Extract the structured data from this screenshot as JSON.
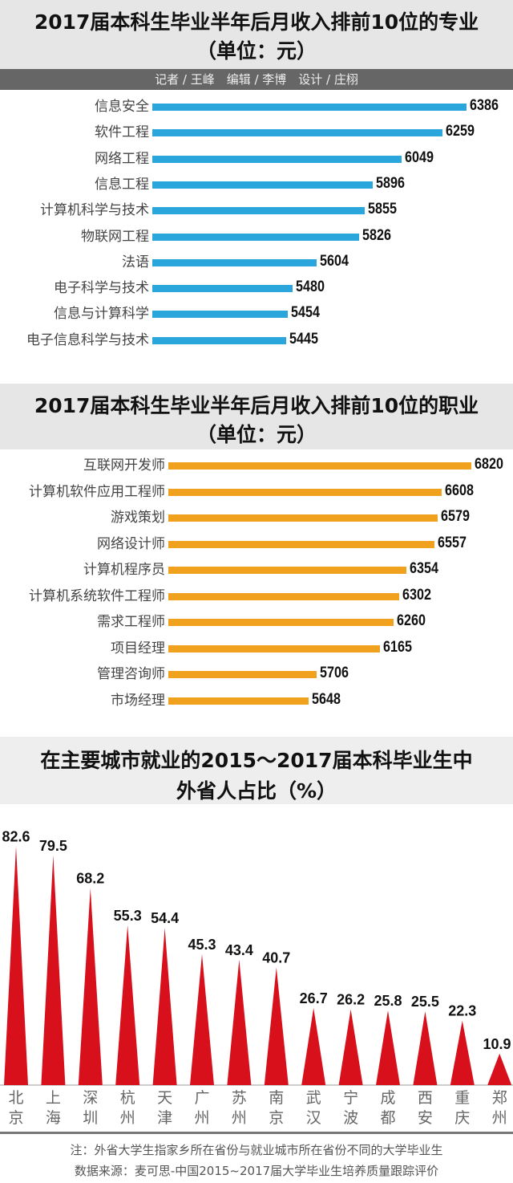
{
  "credit": "记者 / 王峰　编辑 / 李博　设计 / 庄栩",
  "chart_data": [
    {
      "type": "bar",
      "orientation": "horizontal",
      "title": "2017届本科生毕业半年后月收入排前10位的专业",
      "subtitle": "（单位：元）",
      "color": "#2aa6dc",
      "categories": [
        "信息安全",
        "软件工程",
        "网络工程",
        "信息工程",
        "计算机科学与技术",
        "物联网工程",
        "法语",
        "电子科学与技术",
        "信息与计算科学",
        "电子信息科学与技术"
      ],
      "values": [
        6386,
        6259,
        6049,
        5896,
        5855,
        5826,
        5604,
        5480,
        5454,
        5445
      ]
    },
    {
      "type": "bar",
      "orientation": "horizontal",
      "title": "2017届本科生毕业半年后月收入排前10位的职业",
      "subtitle": "（单位：元）",
      "color": "#f0a21e",
      "categories": [
        "互联网开发师",
        "计算机软件应用工程师",
        "游戏策划",
        "网络设计师",
        "计算机程序员",
        "计算机系统软件工程师",
        "需求工程师",
        "项目经理",
        "管理咨询师",
        "市场经理"
      ],
      "values": [
        6820,
        6608,
        6579,
        6557,
        6354,
        6302,
        6260,
        6165,
        5706,
        5648
      ]
    },
    {
      "type": "bar",
      "shape": "triangle",
      "title": "在主要城市就业的2015～2017届本科毕业生中",
      "subtitle": "外省人占比（%）",
      "color": "#d8101c",
      "categories": [
        "北京",
        "上海",
        "深圳",
        "杭州",
        "天津",
        "广州",
        "苏州",
        "南京",
        "武汉",
        "宁波",
        "成都",
        "西安",
        "重庆",
        "郑州"
      ],
      "values": [
        82.6,
        79.5,
        68.2,
        55.3,
        54.4,
        45.3,
        43.4,
        40.7,
        26.7,
        26.2,
        25.8,
        25.5,
        22.3,
        10.9
      ]
    }
  ],
  "notes": [
    "注：外省大学生指家乡所在省份与就业城市所在省份不同的大学毕业生",
    "数据来源：麦可思-中国2015~2017届大学毕业生培养质量跟踪评价"
  ]
}
